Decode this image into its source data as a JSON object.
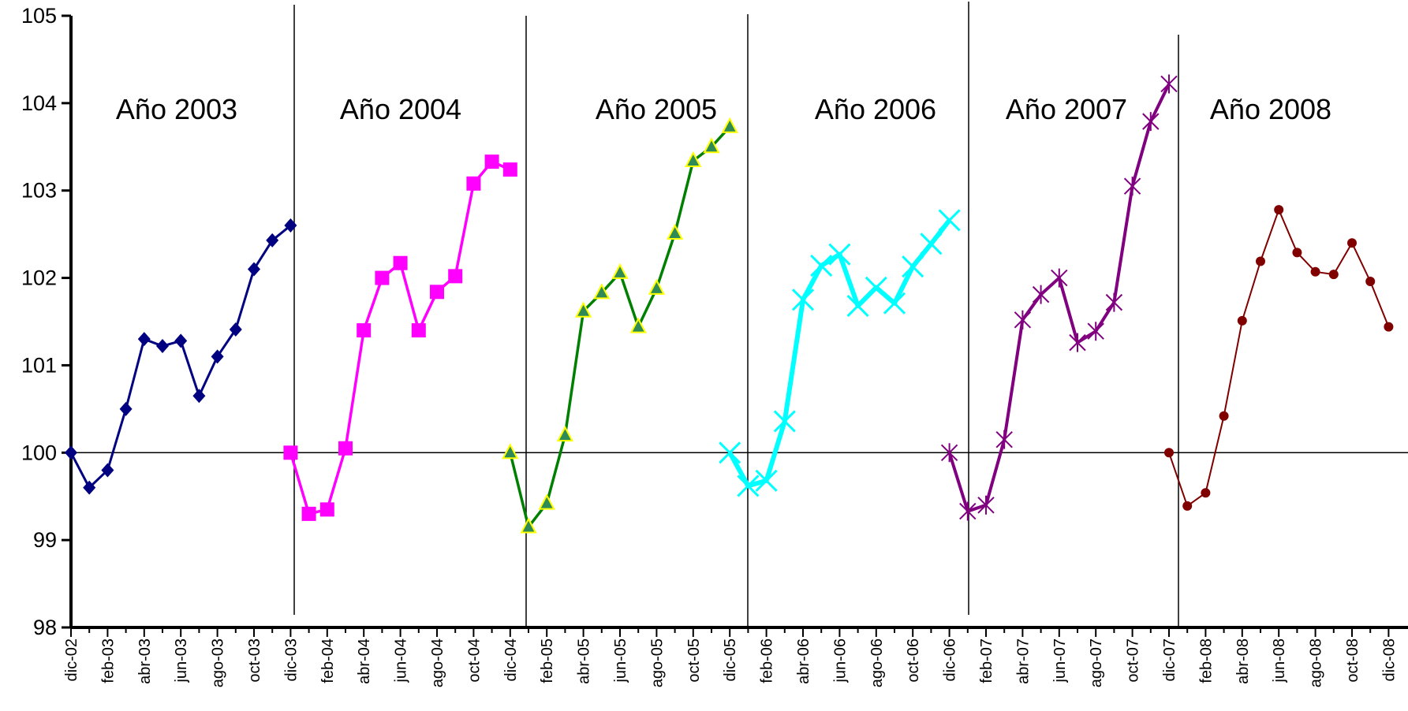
{
  "chart_data": {
    "type": "line",
    "title": "",
    "xlabel": "",
    "ylabel": "",
    "ylim": [
      98,
      105
    ],
    "yticks": [
      "98",
      "99",
      "100",
      "101",
      "102",
      "103",
      "104",
      "105"
    ],
    "x_tick_labels": [
      "dic-02",
      "feb-03",
      "abr-03",
      "jun-03",
      "ago-03",
      "oct-03",
      "dic-03",
      "feb-04",
      "abr-04",
      "jun-04",
      "ago-04",
      "oct-04",
      "dic-04",
      "feb-05",
      "abr-05",
      "jun-05",
      "ago-05",
      "oct-05",
      "dic-05",
      "feb-06",
      "abr-06",
      "jun-06",
      "ago-06",
      "oct-06",
      "dic-06",
      "feb-07",
      "abr-07",
      "jun-07",
      "ago-07",
      "oct-07",
      "dic-07",
      "feb-08",
      "abr-08",
      "jun-08",
      "ago-08",
      "oct-08",
      "dic-08"
    ],
    "reference_line": 100,
    "grid": false,
    "series": [
      {
        "label": "Año 2003",
        "color": "#000080",
        "marker": "diamond",
        "x": [
          "dic-02",
          "ene-03",
          "feb-03",
          "mar-03",
          "abr-03",
          "may-03",
          "jun-03",
          "jul-03",
          "ago-03",
          "sep-03",
          "oct-03",
          "nov-03",
          "dic-03"
        ],
        "values": [
          100.0,
          99.6,
          99.8,
          100.5,
          101.3,
          101.22,
          101.28,
          100.65,
          101.1,
          101.41,
          102.1,
          102.43,
          102.6
        ]
      },
      {
        "label": "Año 2004",
        "color": "#FF00FF",
        "marker": "square",
        "x": [
          "dic-03",
          "ene-04",
          "feb-04",
          "mar-04",
          "abr-04",
          "may-04",
          "jun-04",
          "jul-04",
          "ago-04",
          "sep-04",
          "oct-04",
          "nov-04",
          "dic-04"
        ],
        "values": [
          100.0,
          99.3,
          99.35,
          100.05,
          101.4,
          102.0,
          102.17,
          101.4,
          101.84,
          102.02,
          103.08,
          103.33,
          103.24
        ]
      },
      {
        "label": "Año 2005",
        "color": "#008000",
        "marker": "triangle",
        "x": [
          "dic-04",
          "ene-05",
          "feb-05",
          "mar-05",
          "abr-05",
          "may-05",
          "jun-05",
          "jul-05",
          "ago-05",
          "sep-05",
          "oct-05",
          "nov-05",
          "dic-05"
        ],
        "values": [
          100.0,
          99.15,
          99.42,
          100.2,
          101.62,
          101.83,
          102.06,
          101.44,
          101.88,
          102.51,
          103.34,
          103.5,
          103.73
        ]
      },
      {
        "label": "Año 2006",
        "color": "#00FFFF",
        "marker": "x",
        "x": [
          "dic-05",
          "ene-06",
          "feb-06",
          "mar-06",
          "abr-06",
          "may-06",
          "jun-06",
          "jul-06",
          "ago-06",
          "sep-06",
          "oct-06",
          "nov-06",
          "dic-06"
        ],
        "values": [
          100.0,
          99.62,
          99.68,
          100.36,
          101.75,
          102.14,
          102.27,
          101.68,
          101.89,
          101.71,
          102.13,
          102.39,
          102.66
        ]
      },
      {
        "label": "Año 2007",
        "color": "#800080",
        "marker": "star",
        "x": [
          "dic-06",
          "ene-07",
          "feb-07",
          "mar-07",
          "abr-07",
          "may-07",
          "jun-07",
          "jul-07",
          "ago-07",
          "sep-07",
          "oct-07",
          "nov-07",
          "dic-07"
        ],
        "values": [
          100.0,
          99.33,
          99.4,
          100.15,
          101.52,
          101.81,
          102.0,
          101.26,
          101.39,
          101.72,
          103.05,
          103.79,
          104.22
        ]
      },
      {
        "label": "Año 2008",
        "color": "#800000",
        "marker": "circle",
        "x": [
          "dic-07",
          "ene-08",
          "feb-08",
          "mar-08",
          "abr-08",
          "may-08",
          "jun-08",
          "jul-08",
          "ago-08",
          "sep-08",
          "oct-08",
          "nov-08",
          "dic-08"
        ],
        "values": [
          100.0,
          99.39,
          99.54,
          100.42,
          101.51,
          102.19,
          102.78,
          102.29,
          102.07,
          102.04,
          102.4,
          101.96,
          101.44
        ]
      }
    ],
    "year_labels": [
      "Año 2003",
      "Año 2004",
      "Año 2005",
      "Año 2006",
      "Año 2007",
      "Año 2008"
    ]
  }
}
